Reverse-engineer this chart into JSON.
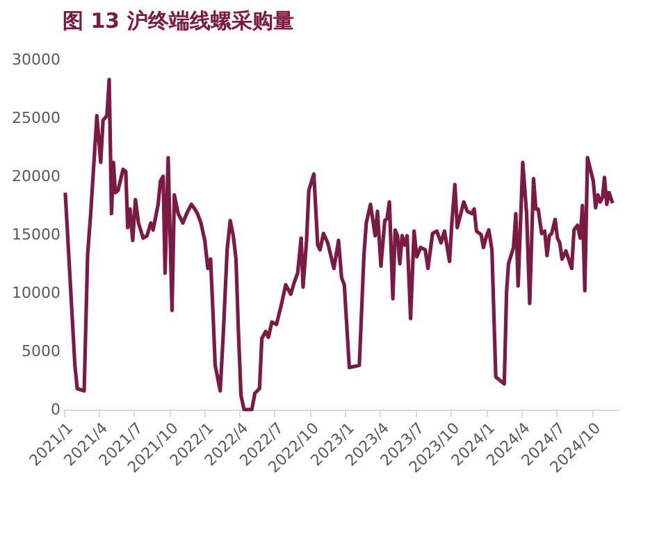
{
  "chart_data": {
    "type": "line",
    "title": "图 13 沪终端线螺采购量",
    "grid": false,
    "marker": "none",
    "line_style": "solid",
    "xlim": [
      "2020-12-28",
      "2024-12-10"
    ],
    "xticks": [
      {
        "value": "2021-01-01",
        "label": "2021/1"
      },
      {
        "value": "2021-04-01",
        "label": "2021/4"
      },
      {
        "value": "2021-07-01",
        "label": "2021/7"
      },
      {
        "value": "2021-10-01",
        "label": "2021/10"
      },
      {
        "value": "2022-01-01",
        "label": "2022/1"
      },
      {
        "value": "2022-04-01",
        "label": "2022/4"
      },
      {
        "value": "2022-07-01",
        "label": "2022/7"
      },
      {
        "value": "2022-10-01",
        "label": "2022/10"
      },
      {
        "value": "2023-01-01",
        "label": "2023/1"
      },
      {
        "value": "2023-04-01",
        "label": "2023/4"
      },
      {
        "value": "2023-07-01",
        "label": "2023/7"
      },
      {
        "value": "2023-10-01",
        "label": "2023/10"
      },
      {
        "value": "2024-01-01",
        "label": "2024/1"
      },
      {
        "value": "2024-04-01",
        "label": "2024/4"
      },
      {
        "value": "2024-07-01",
        "label": "2024/7"
      },
      {
        "value": "2024-10-01",
        "label": "2024/10"
      }
    ],
    "ylim": [
      0,
      30000
    ],
    "yticks": [
      0,
      5000,
      10000,
      15000,
      20000,
      25000,
      30000
    ],
    "x": [
      "2021-01-04",
      "2021-01-29",
      "2021-02-04",
      "2021-02-22",
      "2021-03-03",
      "2021-03-11",
      "2021-03-27",
      "2021-04-06",
      "2021-04-12",
      "2021-04-22",
      "2021-04-28",
      "2021-05-04",
      "2021-05-09",
      "2021-05-14",
      "2021-05-21",
      "2021-06-03",
      "2021-06-10",
      "2021-06-15",
      "2021-06-21",
      "2021-06-28",
      "2021-07-05",
      "2021-07-13",
      "2021-07-25",
      "2021-08-04",
      "2021-08-14",
      "2021-08-20",
      "2021-09-02",
      "2021-09-08",
      "2021-09-15",
      "2021-09-20",
      "2021-09-28",
      "2021-10-08",
      "2021-10-14",
      "2021-10-24",
      "2021-11-05",
      "2021-11-15",
      "2021-11-27",
      "2021-12-06",
      "2021-12-13",
      "2021-12-22",
      "2022-01-01",
      "2022-01-09",
      "2022-01-16",
      "2022-01-22",
      "2022-01-28",
      "2022-02-10",
      "2022-02-18",
      "2022-02-28",
      "2022-03-08",
      "2022-03-16",
      "2022-03-23",
      "2022-03-29",
      "2022-04-05",
      "2022-04-13",
      "2022-05-03",
      "2022-05-11",
      "2022-05-23",
      "2022-05-29",
      "2022-06-08",
      "2022-06-15",
      "2022-06-24",
      "2022-07-06",
      "2022-07-18",
      "2022-07-30",
      "2022-08-12",
      "2022-08-21",
      "2022-08-30",
      "2022-09-08",
      "2022-09-13",
      "2022-09-22",
      "2022-09-28",
      "2022-10-11",
      "2022-10-21",
      "2022-10-27",
      "2022-11-05",
      "2022-11-16",
      "2022-12-02",
      "2022-12-14",
      "2022-12-22",
      "2022-12-29",
      "2023-01-11",
      "2023-02-06",
      "2023-02-18",
      "2023-02-24",
      "2023-03-07",
      "2023-03-19",
      "2023-03-25",
      "2023-04-03",
      "2023-04-13",
      "2023-04-19",
      "2023-04-25",
      "2023-05-04",
      "2023-05-10",
      "2023-05-16",
      "2023-05-22",
      "2023-05-28",
      "2023-06-04",
      "2023-06-10",
      "2023-06-19",
      "2023-06-28",
      "2023-07-05",
      "2023-07-15",
      "2023-07-27",
      "2023-08-03",
      "2023-08-15",
      "2023-08-26",
      "2023-09-06",
      "2023-09-15",
      "2023-09-28",
      "2023-10-04",
      "2023-10-12",
      "2023-10-18",
      "2023-11-04",
      "2023-11-13",
      "2023-11-25",
      "2023-12-01",
      "2023-12-07",
      "2023-12-19",
      "2023-12-25",
      "2024-01-02",
      "2024-01-08",
      "2024-01-16",
      "2024-01-26",
      "2024-02-17",
      "2024-02-23",
      "2024-02-28",
      "2024-03-12",
      "2024-03-18",
      "2024-03-24",
      "2024-04-05",
      "2024-04-15",
      "2024-04-23",
      "2024-05-03",
      "2024-05-09",
      "2024-05-15",
      "2024-05-24",
      "2024-06-01",
      "2024-06-07",
      "2024-06-13",
      "2024-06-19",
      "2024-06-28",
      "2024-07-04",
      "2024-07-10",
      "2024-07-16",
      "2024-07-26",
      "2024-08-02",
      "2024-08-10",
      "2024-08-16",
      "2024-08-25",
      "2024-09-01",
      "2024-09-07",
      "2024-09-13",
      "2024-09-20",
      "2024-10-05",
      "2024-10-11",
      "2024-10-17",
      "2024-10-23",
      "2024-10-29",
      "2024-11-03",
      "2024-11-09",
      "2024-11-15",
      "2024-11-24"
    ],
    "series": [
      {
        "color": "#7b1a42",
        "values": [
          18600,
          3800,
          1800,
          1600,
          13300,
          16800,
          25200,
          21200,
          24800,
          25200,
          28300,
          16800,
          21200,
          18600,
          18800,
          20600,
          20400,
          15600,
          17200,
          14500,
          18000,
          16000,
          14700,
          14900,
          16000,
          15400,
          17600,
          19600,
          20000,
          11700,
          21600,
          8500,
          18400,
          16800,
          16000,
          16800,
          17600,
          17200,
          16800,
          16000,
          14500,
          12100,
          12900,
          8500,
          3800,
          1600,
          6500,
          13700,
          16200,
          14900,
          12900,
          6900,
          1200,
          0,
          0,
          1400,
          1800,
          6100,
          6700,
          6200,
          7500,
          7300,
          8900,
          10700,
          9900,
          10900,
          11700,
          14700,
          10500,
          14500,
          18800,
          20200,
          14100,
          13700,
          15100,
          14300,
          12100,
          14500,
          11300,
          10700,
          3600,
          3800,
          13300,
          16000,
          17600,
          14900,
          17000,
          12300,
          16200,
          16400,
          17800,
          9500,
          15400,
          14900,
          12500,
          14900,
          14100,
          14900,
          7800,
          15300,
          13100,
          13900,
          13700,
          12100,
          15100,
          15300,
          14300,
          15300,
          12700,
          16000,
          19300,
          15600,
          17800,
          17000,
          16800,
          17200,
          15300,
          15000,
          13900,
          14900,
          15400,
          13700,
          2800,
          2200,
          10100,
          12500,
          13900,
          16800,
          10600,
          21200,
          16800,
          9100,
          19800,
          17200,
          17200,
          15100,
          15300,
          13200,
          14900,
          15100,
          16300,
          14700,
          14300,
          12900,
          13600,
          12900,
          12100,
          15400,
          15800,
          14700,
          17500,
          10200,
          21600,
          19600,
          17300,
          18400,
          17800,
          18200,
          19900,
          17600,
          18600,
          17700
        ]
      }
    ]
  }
}
